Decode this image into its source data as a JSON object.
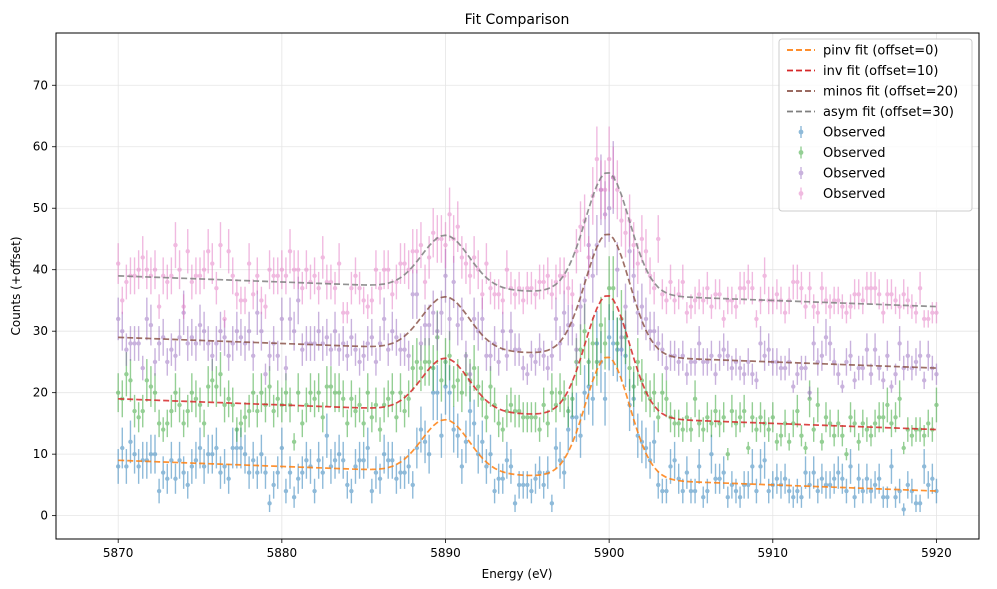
{
  "chart_data": {
    "type": "scatter",
    "title": "Fit Comparison",
    "xlabel": "Energy (eV)",
    "ylabel": "Counts (+offset)",
    "xlim": [
      5866.2,
      5922.6
    ],
    "ylim": [
      -3.8,
      78.5
    ],
    "xticks": [
      5870,
      5880,
      5890,
      5900,
      5910,
      5920
    ],
    "yticks": [
      0,
      10,
      20,
      30,
      40,
      50,
      60,
      70
    ],
    "grid": true,
    "legend_position": "top-right",
    "model": {
      "x_start": 5870,
      "x_end": 5920,
      "n_points": 201,
      "background_start": 9.0,
      "background_end": 4.0,
      "peaks": [
        {
          "center": 5890.0,
          "amplitude": 8.6,
          "sigma": 1.45
        },
        {
          "center": 5899.9,
          "amplitude": 19.8,
          "sigma": 1.35
        }
      ]
    },
    "series": [
      {
        "name": "pinv fit (offset=0)",
        "kind": "fit",
        "offset": 0,
        "color": "#ff7f0e",
        "opacity": 0.8
      },
      {
        "name": "inv fit (offset=10)",
        "kind": "fit",
        "offset": 10,
        "color": "#d62728",
        "opacity": 0.8
      },
      {
        "name": "minos fit (offset=20)",
        "kind": "fit",
        "offset": 20,
        "color": "#8c564b",
        "opacity": 0.8
      },
      {
        "name": "asym fit (offset=30)",
        "kind": "fit",
        "offset": 30,
        "color": "#7f7f7f",
        "opacity": 0.8
      },
      {
        "name": "Observed",
        "kind": "data",
        "offset": 0,
        "color": "#1f77b4",
        "opacity": 0.5
      },
      {
        "name": "Observed",
        "kind": "data",
        "offset": 10,
        "color": "#2ca02c",
        "opacity": 0.5
      },
      {
        "name": "Observed",
        "kind": "data",
        "offset": 20,
        "color": "#9467bd",
        "opacity": 0.5
      },
      {
        "name": "Observed",
        "kind": "data",
        "offset": 30,
        "color": "#e377c2",
        "opacity": 0.5
      }
    ]
  }
}
